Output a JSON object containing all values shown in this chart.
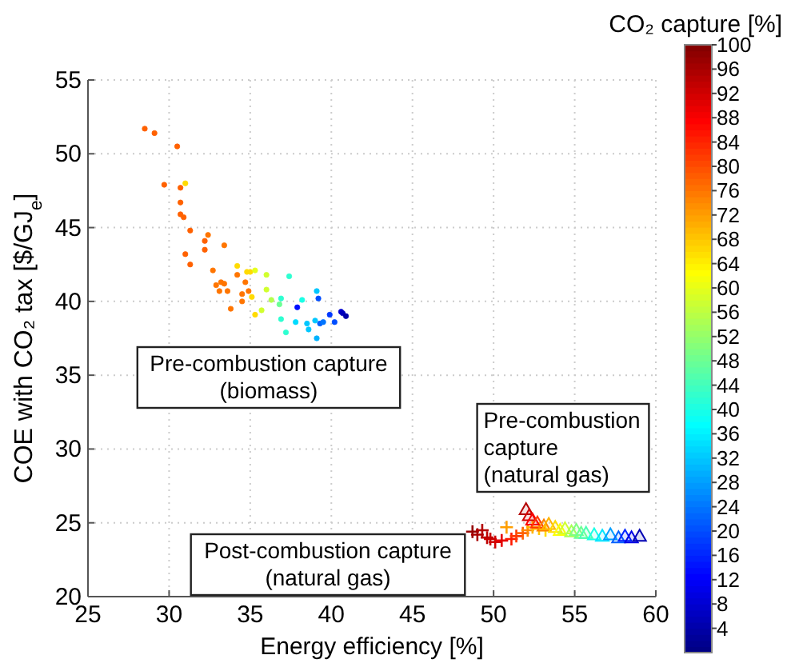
{
  "chart_data": {
    "type": "scatter",
    "xlabel": "Energy efficiency [%]",
    "ylabel": "COE with CO₂ tax [$/GJ$_{e}$]",
    "clabel": "CO₂ capture [%]",
    "xlim": [
      25,
      60
    ],
    "xticks": [
      25,
      30,
      35,
      40,
      45,
      50,
      55,
      60
    ],
    "ylim": [
      20,
      55
    ],
    "yticks": [
      20,
      25,
      30,
      35,
      40,
      45,
      50,
      55
    ],
    "grid": true,
    "clim": [
      0,
      100
    ],
    "cticks": [
      4,
      8,
      12,
      16,
      20,
      24,
      28,
      32,
      36,
      40,
      44,
      48,
      52,
      56,
      60,
      64,
      68,
      72,
      76,
      80,
      84,
      88,
      92,
      96,
      100
    ],
    "series": [
      {
        "marker": "circle",
        "x": [
          28.5,
          29.1,
          30.5,
          29.7,
          31.0,
          30.7,
          30.7,
          30.7,
          30.9,
          31.3,
          32.4,
          32.2,
          32.2,
          33.4,
          31.0,
          31.3,
          32.7,
          32.9,
          33.2,
          33.4,
          33.1,
          33.6,
          33.8,
          34.2,
          34.2,
          34.8,
          35.0,
          35.3,
          34.7,
          34.9,
          34.5,
          35.1,
          34.5,
          35.3,
          36.0,
          36.0,
          36.3,
          35.7,
          36.8,
          36.9,
          37.4,
          36.9,
          37.2,
          37.8,
          38.2,
          37.9,
          39.1,
          39.2,
          38.5,
          38.6,
          39.0,
          39.3,
          39.5,
          39.1,
          39.9,
          40.2,
          40.6,
          40.7,
          40.9
        ],
        "values": [
          51.7,
          51.4,
          50.5,
          47.9,
          48.0,
          47.7,
          46.7,
          45.9,
          45.7,
          44.8,
          44.5,
          44.1,
          43.5,
          43.8,
          43.2,
          42.5,
          42.1,
          41.1,
          41.3,
          41.2,
          40.7,
          40.7,
          39.5,
          42.4,
          41.8,
          42.0,
          42.0,
          42.1,
          41.3,
          40.7,
          40.5,
          40.3,
          40.0,
          39.1,
          41.8,
          40.8,
          40.1,
          39.4,
          39.8,
          40.2,
          41.7,
          38.8,
          37.9,
          38.6,
          40.1,
          39.6,
          40.7,
          40.2,
          38.5,
          38.1,
          38.7,
          38.5,
          38.6,
          37.5,
          39.1,
          38.6,
          39.3,
          39.2,
          39.0
        ],
        "colors": [
          "#ff6100",
          "#ff6100",
          "#ff6100",
          "#ff6100",
          "#ffdb00",
          "#ff6100",
          "#ff6100",
          "#ff6100",
          "#ff6100",
          "#ff6100",
          "#ff7500",
          "#ff6100",
          "#ff6100",
          "#ff7500",
          "#ff6100",
          "#ff6100",
          "#ff7500",
          "#ff7500",
          "#ff7500",
          "#ff7500",
          "#ff7500",
          "#ff7500",
          "#ff7500",
          "#ffdb00",
          "#ff7500",
          "#ffdb00",
          "#ffdb00",
          "#e6ff1a",
          "#ff7500",
          "#ff7500",
          "#ff7500",
          "#ffdb00",
          "#ff7500",
          "#ffdb00",
          "#d1ff2e",
          "#d1ff2e",
          "#b3ff4d",
          "#d1ff2e",
          "#6bff94",
          "#2effd1",
          "#2effd1",
          "#2effd1",
          "#2effd1",
          "#00dbff",
          "#1affe6",
          "#000fff",
          "#00c7ff",
          "#004dff",
          "#00c7ff",
          "#00c7ff",
          "#00c7ff",
          "#0061ff",
          "#0075ff",
          "#00b3ff",
          "#0038ff",
          "#004dff",
          "#0000d1",
          "#0000bd",
          "#0000a8"
        ],
        "cvalues": [
          78,
          78,
          78,
          78,
          66,
          78,
          78,
          78,
          78,
          78,
          76,
          78,
          78,
          76,
          78,
          78,
          76,
          76,
          76,
          76,
          76,
          76,
          76,
          66,
          76,
          66,
          66,
          60,
          76,
          76,
          76,
          66,
          76,
          66,
          58,
          58,
          55,
          58,
          48,
          42,
          42,
          42,
          42,
          34,
          40,
          14,
          32,
          20,
          32,
          32,
          32,
          22,
          24,
          30,
          18,
          20,
          8,
          6,
          4
        ]
      },
      {
        "marker": "cross",
        "x": [
          48.7,
          49.0,
          49.3,
          49.6,
          49.8,
          50.1,
          50.5,
          50.8,
          51.1,
          51.4,
          51.8,
          52.1,
          52.4,
          52.8,
          53.2
        ],
        "values": [
          24.4,
          24.2,
          24.5,
          24.0,
          23.9,
          23.7,
          23.8,
          24.7,
          23.9,
          24.1,
          24.3,
          24.5,
          24.7,
          24.6,
          24.5
        ],
        "colors": [
          "#940000",
          "#a80000",
          "#b30000",
          "#bd0000",
          "#c70000",
          "#d10000",
          "#e60000",
          "#ff9e00",
          "#ff1a00",
          "#ff3800",
          "#ff6100",
          "#ff8a00",
          "#ffb300",
          "#ffc700",
          "#ffdb00"
        ],
        "cvalues": [
          98,
          96,
          95,
          94,
          93,
          92,
          90,
          72,
          85,
          82,
          78,
          74,
          70,
          68,
          66
        ]
      },
      {
        "marker": "triangle",
        "x": [
          52.0,
          52.2,
          52.4,
          52.7,
          53.1,
          53.4,
          53.8,
          54.1,
          54.4,
          54.8,
          55.1,
          55.4,
          55.7,
          56.2,
          56.7,
          57.2,
          57.7,
          58.1,
          58.5,
          59.0
        ],
        "values": [
          25.9,
          25.5,
          25.2,
          25.0,
          24.8,
          24.9,
          24.7,
          24.5,
          24.6,
          24.4,
          24.5,
          24.3,
          24.3,
          24.2,
          24.1,
          24.2,
          24.0,
          24.1,
          24.0,
          24.1
        ],
        "colors": [
          "#b30000",
          "#d10000",
          "#fa0000",
          "#ff3800",
          "#ff8000",
          "#ffb300",
          "#ffdb00",
          "#faff05",
          "#d1ff2e",
          "#a8ff57",
          "#80ff80",
          "#6bff94",
          "#4dffb3",
          "#1affe6",
          "#00e6ff",
          "#009eff",
          "#0061ff",
          "#0024ff",
          "#0000e6",
          "#0000b3"
        ],
        "cvalues": [
          95,
          92,
          88,
          82,
          75,
          70,
          66,
          62,
          58,
          54,
          50,
          48,
          45,
          40,
          35,
          28,
          22,
          16,
          10,
          5
        ]
      }
    ],
    "annotations": [
      "Pre-combustion capture\n(biomass)",
      "Pre-combustion\ncapture\n(natural gas)",
      "Post-combustion capture\n(natural gas)"
    ]
  }
}
